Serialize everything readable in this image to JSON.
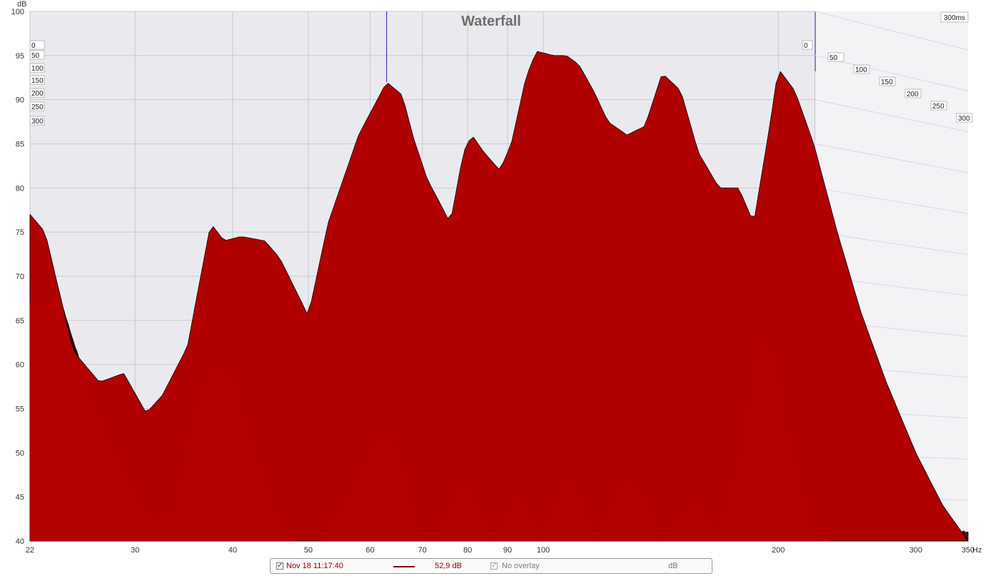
{
  "chart_data": {
    "type": "area",
    "title": "Waterfall",
    "y_unit": "dB",
    "x_unit": "Hz",
    "x_scale": "log",
    "xlim": [
      22,
      350
    ],
    "ylim": [
      40,
      100
    ],
    "x_ticks": [
      22,
      30,
      40,
      50,
      60,
      70,
      80,
      90,
      100,
      200,
      300,
      350
    ],
    "x_tick_labels": [
      "22",
      "30",
      "40",
      "50",
      "60",
      "70",
      "80",
      "90",
      "100",
      "200",
      "300",
      "350"
    ],
    "y_ticks": [
      40,
      45,
      50,
      55,
      60,
      65,
      70,
      75,
      80,
      85,
      90,
      95,
      100
    ],
    "time_axis_label": "300ms",
    "time_slices_ms": [
      0,
      50,
      100,
      150,
      200,
      250,
      300
    ],
    "cursor_freq_hz": 63,
    "grid": true,
    "fill_color": "#b00000",
    "outline_color": "#1a0000",
    "series": [
      {
        "name": "0ms",
        "points": [
          [
            22,
            77
          ],
          [
            23,
            75
          ],
          [
            25,
            61.5
          ],
          [
            27,
            58
          ],
          [
            29,
            59
          ],
          [
            31,
            54.5
          ],
          [
            32.5,
            56.5
          ],
          [
            35,
            62
          ],
          [
            37.5,
            76
          ],
          [
            39,
            74
          ],
          [
            41,
            74.5
          ],
          [
            44,
            74
          ],
          [
            46,
            72
          ],
          [
            50,
            65.5
          ],
          [
            53,
            76
          ],
          [
            58,
            86
          ],
          [
            63,
            92
          ],
          [
            66,
            90.5
          ],
          [
            68,
            86
          ],
          [
            71,
            81
          ],
          [
            73,
            79
          ],
          [
            76,
            76
          ],
          [
            79,
            84
          ],
          [
            81,
            86
          ],
          [
            84,
            84
          ],
          [
            88,
            82
          ],
          [
            91,
            85
          ],
          [
            95,
            92.5
          ],
          [
            98,
            95.5
          ],
          [
            103,
            95
          ],
          [
            107,
            95
          ],
          [
            111,
            94
          ],
          [
            116,
            91
          ],
          [
            121,
            87.5
          ],
          [
            128,
            86
          ],
          [
            135,
            87
          ],
          [
            142,
            93
          ],
          [
            150,
            91
          ],
          [
            158,
            84
          ],
          [
            168,
            80
          ],
          [
            178,
            80
          ],
          [
            186,
            76
          ],
          [
            195,
            87
          ],
          [
            200,
            93.5
          ],
          [
            210,
            91
          ],
          [
            222,
            85
          ],
          [
            238,
            75
          ],
          [
            255,
            66
          ],
          [
            275,
            58
          ],
          [
            300,
            50
          ],
          [
            325,
            44
          ],
          [
            350,
            40
          ]
        ]
      },
      {
        "name": "300ms",
        "points": [
          [
            22,
            67
          ],
          [
            24,
            66.5
          ],
          [
            26,
            57
          ],
          [
            28,
            50
          ],
          [
            30,
            45
          ],
          [
            32,
            42
          ],
          [
            34,
            44
          ],
          [
            36,
            55
          ],
          [
            38,
            60
          ],
          [
            40,
            58.5
          ],
          [
            42,
            52
          ],
          [
            44,
            46
          ],
          [
            46,
            42
          ],
          [
            48,
            40
          ],
          [
            52,
            40
          ],
          [
            56,
            44
          ],
          [
            60,
            50
          ],
          [
            63,
            52
          ],
          [
            66,
            48
          ],
          [
            69,
            41
          ],
          [
            72,
            40
          ],
          [
            76,
            43
          ],
          [
            79,
            47
          ],
          [
            82,
            44
          ],
          [
            85,
            40
          ],
          [
            88,
            41
          ],
          [
            92,
            45
          ],
          [
            96,
            43
          ],
          [
            100,
            40
          ],
          [
            104,
            44
          ],
          [
            108,
            48
          ],
          [
            112,
            44
          ],
          [
            116,
            40
          ],
          [
            122,
            43
          ],
          [
            128,
            47
          ],
          [
            134,
            45
          ],
          [
            142,
            40
          ],
          [
            150,
            43
          ],
          [
            158,
            45
          ],
          [
            165,
            40
          ],
          [
            172,
            44
          ],
          [
            180,
            50
          ],
          [
            186,
            58
          ],
          [
            192,
            63
          ],
          [
            197,
            61
          ],
          [
            203,
            55
          ],
          [
            210,
            48
          ],
          [
            218,
            42
          ],
          [
            230,
            40
          ],
          [
            350,
            40
          ]
        ]
      }
    ]
  },
  "legend": {
    "measurement_checked": "✓",
    "measurement_label": "Nov 18 11:17:40",
    "cursor_value": "52,9 dB",
    "overlay_checked": "✓",
    "overlay_label": "No overlay",
    "unit_label": "dB"
  }
}
